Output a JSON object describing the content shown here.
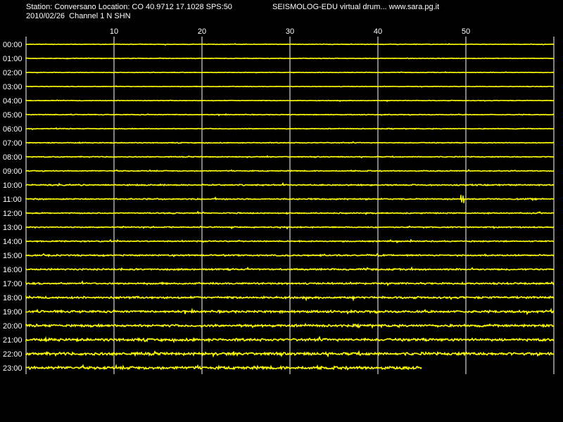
{
  "header": {
    "station_line": "Station: Conversano Location: CO 40.9712 17.1028 SPS:50",
    "app_line": "SEISMOLOG-EDU virtual drum... www.sara.pg.it",
    "date_line": "2010/02/26  Channel 1 N SHN"
  },
  "colors": {
    "background": "#000000",
    "trace": "#ffff00",
    "grid": "#ffffff",
    "text": "#ffffff"
  },
  "chart_data": {
    "type": "line",
    "title": "",
    "xlabel": "",
    "ylabel": "",
    "x_unit": "minutes",
    "xlim": [
      0,
      60
    ],
    "x_ticks": [
      10,
      20,
      30,
      40,
      50
    ],
    "grid": true,
    "rows": [
      {
        "label": "00:00",
        "noise": 0.3,
        "end_minute": 60
      },
      {
        "label": "01:00",
        "noise": 0.3,
        "end_minute": 60
      },
      {
        "label": "02:00",
        "noise": 0.3,
        "end_minute": 60
      },
      {
        "label": "03:00",
        "noise": 0.3,
        "end_minute": 60
      },
      {
        "label": "04:00",
        "noise": 0.35,
        "end_minute": 60
      },
      {
        "label": "05:00",
        "noise": 0.4,
        "end_minute": 60
      },
      {
        "label": "06:00",
        "noise": 0.4,
        "end_minute": 60
      },
      {
        "label": "07:00",
        "noise": 0.45,
        "end_minute": 60
      },
      {
        "label": "08:00",
        "noise": 0.5,
        "end_minute": 60
      },
      {
        "label": "09:00",
        "noise": 0.55,
        "end_minute": 60
      },
      {
        "label": "10:00",
        "noise": 0.7,
        "end_minute": 60
      },
      {
        "label": "11:00",
        "noise": 0.7,
        "end_minute": 60,
        "event_minute": 49.6
      },
      {
        "label": "12:00",
        "noise": 0.6,
        "end_minute": 60
      },
      {
        "label": "13:00",
        "noise": 0.6,
        "end_minute": 60
      },
      {
        "label": "14:00",
        "noise": 0.65,
        "end_minute": 60
      },
      {
        "label": "15:00",
        "noise": 0.75,
        "end_minute": 60
      },
      {
        "label": "16:00",
        "noise": 0.85,
        "end_minute": 60
      },
      {
        "label": "17:00",
        "noise": 0.9,
        "end_minute": 60
      },
      {
        "label": "18:00",
        "noise": 1.1,
        "end_minute": 60
      },
      {
        "label": "19:00",
        "noise": 1.2,
        "end_minute": 60
      },
      {
        "label": "20:00",
        "noise": 1.3,
        "end_minute": 60
      },
      {
        "label": "21:00",
        "noise": 1.4,
        "end_minute": 60
      },
      {
        "label": "22:00",
        "noise": 1.5,
        "end_minute": 60
      },
      {
        "label": "23:00",
        "noise": 1.6,
        "end_minute": 45
      }
    ]
  }
}
